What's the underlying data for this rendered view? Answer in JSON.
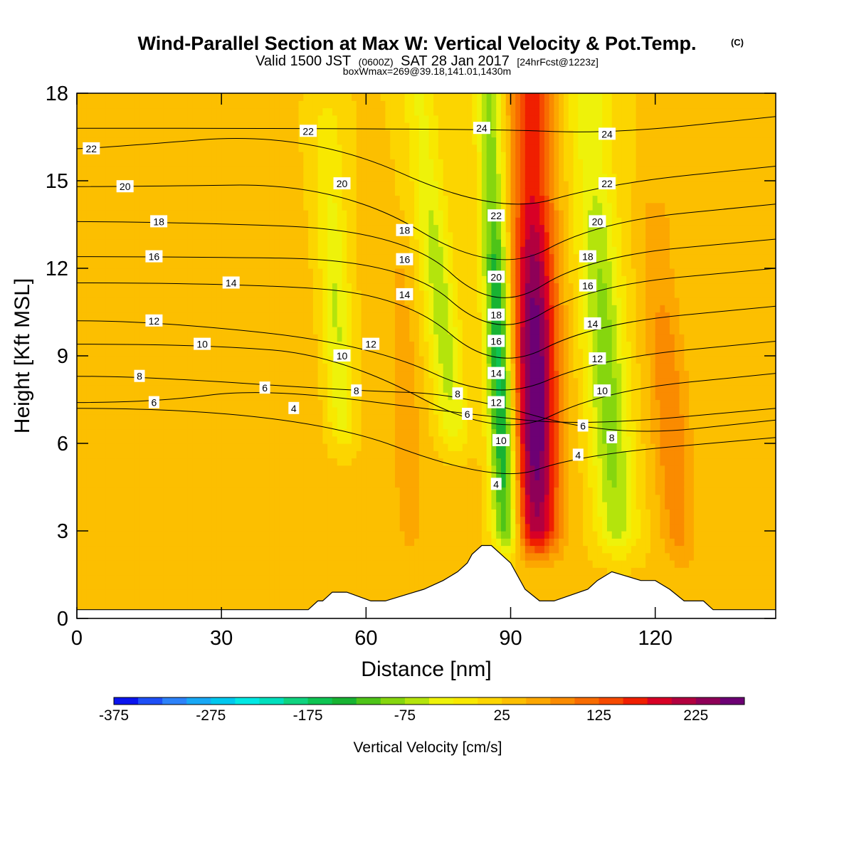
{
  "title": {
    "main": "Wind-Parallel Section at Max W: Vertical Velocity & Pot.Temp.",
    "copyright": "(C)",
    "valid_prefix": "Valid 1500 JST",
    "valid_zulu": "(0600Z)",
    "valid_date": "SAT 28 Jan 2017",
    "valid_fcst": "[24hrFcst@1223z]",
    "boxinfo": "boxWmax=269@39.18,141.01,1430m"
  },
  "chart_data": {
    "type": "heatmap",
    "title": "Wind-Parallel Section at Max W: Vertical Velocity & Pot.Temp.",
    "xlabel": "Distance [nm]",
    "ylabel": "Height [Kft MSL]",
    "xlim": [
      0,
      145
    ],
    "ylim": [
      0,
      18
    ],
    "x_ticks": [
      0,
      30,
      60,
      90,
      120
    ],
    "y_ticks": [
      0,
      3,
      6,
      9,
      12,
      15,
      18
    ],
    "grid": false,
    "colorbar": {
      "title": "Vertical Velocity [cm/s]",
      "placement": "bottom",
      "min": -375,
      "max": 275,
      "step": 25,
      "tick_values": [
        -375,
        -275,
        -175,
        -75,
        25,
        125,
        225
      ],
      "tick_labels": [
        "-375",
        "-275",
        "-175",
        "-75",
        "25",
        "125",
        "225"
      ],
      "colors": [
        "#0a14ee",
        "#1e4ff6",
        "#2d82f9",
        "#18a8f5",
        "#00c8ef",
        "#00e8e4",
        "#00dfbd",
        "#0fd37f",
        "#0ec452",
        "#18b332",
        "#4ec418",
        "#86d60e",
        "#b4e40c",
        "#eef20a",
        "#f8e800",
        "#fcd500",
        "#fcbf00",
        "#fca700",
        "#fa8b00",
        "#f86c00",
        "#f64a00",
        "#f01f00",
        "#d80026",
        "#b2003f",
        "#8e0058",
        "#6d0074"
      ]
    },
    "velocity_field": {
      "background_cms": 25,
      "features": [
        {
          "kind": "updraft",
          "x": 95.5,
          "width": 4.5,
          "tilt_x": -1.2,
          "y_from": 3.0,
          "y_to": 18,
          "peak_cms": 269
        },
        {
          "kind": "downdraft",
          "x": 89.0,
          "width": 2.8,
          "tilt_x": -3.5,
          "y_from": 3.0,
          "y_to": 18,
          "peak_cms": -180
        },
        {
          "kind": "downdraft",
          "x": 112.0,
          "width": 4.5,
          "tilt_x": -6.0,
          "y_from": 3.0,
          "y_to": 18,
          "peak_cms": -100
        },
        {
          "kind": "downdraft",
          "x": 78.0,
          "width": 3.5,
          "tilt_x": -7.0,
          "y_from": 6.5,
          "y_to": 18,
          "peak_cms": -75
        },
        {
          "kind": "downdraft",
          "x": 55.0,
          "width": 3.0,
          "tilt_x": -3.0,
          "y_from": 6.5,
          "y_to": 17,
          "peak_cms": -60
        },
        {
          "kind": "updraft",
          "x": 125.0,
          "width": 3.5,
          "tilt_x": -5.0,
          "y_from": 2.5,
          "y_to": 14,
          "peak_cms": 90
        },
        {
          "kind": "updraft",
          "x": 69.0,
          "width": 2.5,
          "tilt_x": -2.0,
          "y_from": 3.0,
          "y_to": 13,
          "peak_cms": 65
        }
      ]
    },
    "terrain_kft": {
      "x": [
        0,
        48,
        50,
        51,
        53,
        56,
        61,
        64,
        70,
        72,
        76,
        79,
        81,
        82,
        84,
        86,
        90,
        93,
        96,
        99,
        106,
        108,
        111,
        117,
        120,
        123,
        126,
        130,
        132,
        135,
        145
      ],
      "y": [
        0.3,
        0.3,
        0.6,
        0.6,
        0.9,
        0.9,
        0.6,
        0.6,
        0.9,
        1.0,
        1.3,
        1.6,
        1.9,
        2.2,
        2.5,
        2.5,
        1.9,
        1.0,
        0.6,
        0.6,
        1.0,
        1.3,
        1.6,
        1.3,
        1.3,
        1.0,
        0.6,
        0.6,
        0.3,
        0.3,
        0.3
      ]
    },
    "theta_contours": [
      {
        "label": "4",
        "label_at": [
          [
            45,
            7.2
          ],
          [
            87,
            4.6
          ],
          [
            104,
            5.6
          ]
        ]
      },
      {
        "label": "6",
        "label_at": [
          [
            16,
            7.4
          ],
          [
            39,
            7.9
          ],
          [
            81,
            7.0
          ],
          [
            105,
            6.6
          ]
        ]
      },
      {
        "label": "8",
        "label_at": [
          [
            13,
            8.3
          ],
          [
            58,
            7.8
          ],
          [
            79,
            7.7
          ],
          [
            111,
            6.2
          ]
        ]
      },
      {
        "label": "10",
        "label_at": [
          [
            26,
            9.4
          ],
          [
            55,
            9.0
          ],
          [
            88,
            6.1
          ],
          [
            109,
            7.8
          ]
        ]
      },
      {
        "label": "12",
        "label_at": [
          [
            16,
            10.2
          ],
          [
            61,
            9.4
          ],
          [
            87,
            7.4
          ],
          [
            108,
            8.9
          ]
        ]
      },
      {
        "label": "14",
        "label_at": [
          [
            32,
            11.5
          ],
          [
            68,
            11.1
          ],
          [
            87,
            8.4
          ],
          [
            107,
            10.1
          ]
        ]
      },
      {
        "label": "16",
        "label_at": [
          [
            16,
            12.4
          ],
          [
            68,
            12.3
          ],
          [
            87,
            9.5
          ],
          [
            106,
            11.4
          ]
        ]
      },
      {
        "label": "18",
        "label_at": [
          [
            17,
            13.6
          ],
          [
            68,
            13.3
          ],
          [
            87,
            10.4
          ],
          [
            106,
            12.4
          ]
        ]
      },
      {
        "label": "20",
        "label_at": [
          [
            10,
            14.8
          ],
          [
            55,
            14.9
          ],
          [
            87,
            11.7
          ],
          [
            108,
            13.6
          ]
        ]
      },
      {
        "label": "22",
        "label_at": [
          [
            3,
            16.1
          ],
          [
            48,
            16.7
          ],
          [
            87,
            13.8
          ],
          [
            110,
            14.9
          ]
        ]
      },
      {
        "label": "24",
        "label_at": [
          [
            84,
            16.8
          ],
          [
            110,
            16.6
          ]
        ]
      }
    ]
  }
}
